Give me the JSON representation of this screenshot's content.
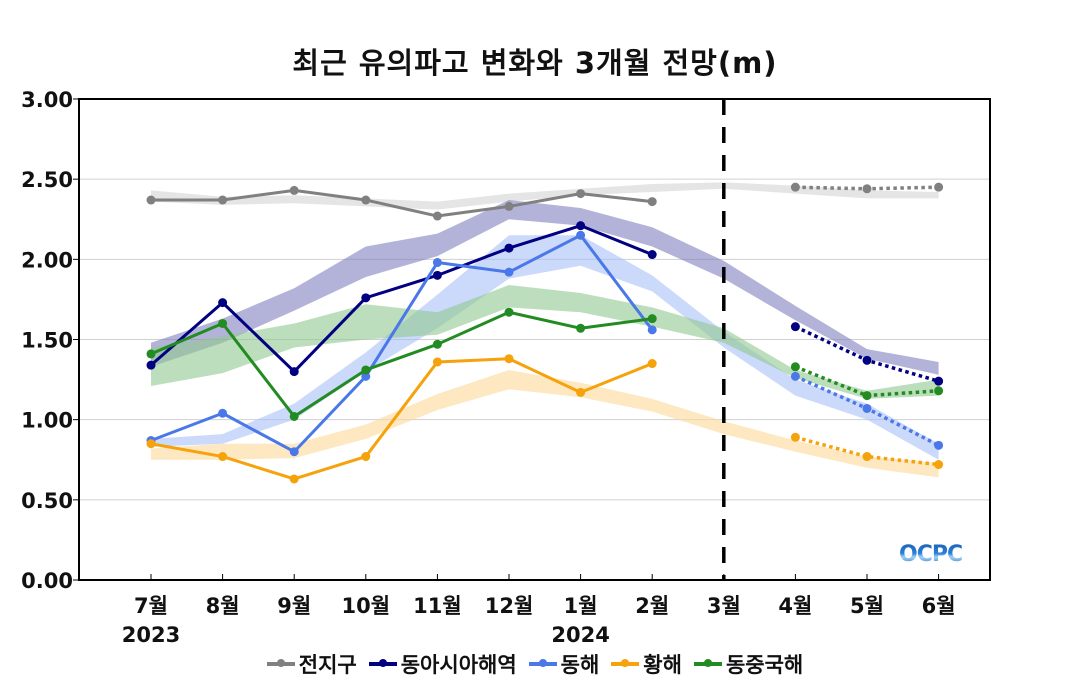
{
  "chart_data": {
    "type": "line",
    "title": "최근 유의파고 변화와 3개월 전망(m)",
    "xlabel": "",
    "ylabel": "",
    "ylim": [
      0,
      3.0
    ],
    "yticks": [
      "0.00",
      "0.50",
      "1.00",
      "1.50",
      "2.00",
      "2.50",
      "3.00"
    ],
    "ytick_values": [
      0,
      0.5,
      1.0,
      1.5,
      2.0,
      2.5,
      3.0
    ],
    "categories": [
      "7월",
      "8월",
      "9월",
      "10월",
      "11월",
      "12월",
      "1월",
      "2월",
      "3월",
      "4월",
      "5월",
      "6월"
    ],
    "year_labels": [
      {
        "label": "2023",
        "category_index": 0
      },
      {
        "label": "2024",
        "category_index": 6
      }
    ],
    "grid": "horizontal",
    "forecast_divider_category": "3월",
    "legend_position": "bottom",
    "series": [
      {
        "name": "전지구",
        "color": "#808080",
        "band_color": "#e0e0e0",
        "observed": [
          2.37,
          2.37,
          2.43,
          2.37,
          2.27,
          2.33,
          2.41,
          2.36,
          null,
          null,
          null,
          null
        ],
        "forecast": [
          null,
          null,
          null,
          null,
          null,
          null,
          null,
          null,
          null,
          2.45,
          2.44,
          2.45
        ],
        "band_low": [
          2.36,
          2.34,
          2.35,
          2.33,
          2.31,
          2.36,
          2.4,
          2.42,
          2.44,
          2.41,
          2.38,
          2.38
        ],
        "band_high": [
          2.43,
          2.39,
          2.4,
          2.38,
          2.36,
          2.41,
          2.44,
          2.47,
          2.48,
          2.46,
          2.43,
          2.42
        ]
      },
      {
        "name": "동아시아해역",
        "color": "#000080",
        "band_color": "#8080c0",
        "observed": [
          1.34,
          1.73,
          1.3,
          1.76,
          1.9,
          2.07,
          2.21,
          2.03,
          null,
          null,
          null,
          null
        ],
        "forecast": [
          null,
          null,
          null,
          null,
          null,
          null,
          null,
          null,
          null,
          1.58,
          1.37,
          1.24
        ],
        "band_low": [
          1.33,
          1.48,
          1.68,
          1.89,
          2.02,
          2.25,
          2.21,
          2.08,
          1.88,
          1.62,
          1.38,
          1.28
        ],
        "band_high": [
          1.48,
          1.63,
          1.82,
          2.08,
          2.16,
          2.37,
          2.32,
          2.2,
          1.99,
          1.71,
          1.44,
          1.36
        ]
      },
      {
        "name": "동해",
        "color": "#4a78e8",
        "band_color": "#a8c0f8",
        "observed": [
          0.87,
          1.04,
          0.8,
          1.27,
          1.98,
          1.92,
          2.15,
          1.56,
          null,
          null,
          null,
          null
        ],
        "forecast": [
          null,
          null,
          null,
          null,
          null,
          null,
          null,
          null,
          null,
          1.27,
          1.07,
          0.84
        ],
        "band_low": [
          0.83,
          0.85,
          1.0,
          1.3,
          1.57,
          1.88,
          1.96,
          1.8,
          1.45,
          1.15,
          1.0,
          0.75
        ],
        "band_high": [
          0.88,
          0.91,
          1.1,
          1.42,
          1.78,
          2.15,
          2.15,
          1.9,
          1.55,
          1.25,
          1.1,
          0.85
        ]
      },
      {
        "name": "황해",
        "color": "#f5a20c",
        "band_color": "#fcd89a",
        "observed": [
          0.85,
          0.77,
          0.63,
          0.77,
          1.36,
          1.38,
          1.17,
          1.35,
          null,
          null,
          null,
          null
        ],
        "forecast": [
          null,
          null,
          null,
          null,
          null,
          null,
          null,
          null,
          null,
          0.89,
          0.77,
          0.72
        ],
        "band_low": [
          0.75,
          0.75,
          0.76,
          0.88,
          1.06,
          1.19,
          1.14,
          1.05,
          0.91,
          0.8,
          0.7,
          0.64
        ],
        "band_high": [
          0.82,
          0.85,
          0.85,
          0.97,
          1.16,
          1.31,
          1.23,
          1.13,
          0.99,
          0.87,
          0.77,
          0.73
        ]
      },
      {
        "name": "동중국해",
        "color": "#228b22",
        "band_color": "#90c890",
        "observed": [
          1.41,
          1.6,
          1.02,
          1.31,
          1.47,
          1.67,
          1.57,
          1.63,
          null,
          null,
          null,
          null
        ],
        "forecast": [
          null,
          null,
          null,
          null,
          null,
          null,
          null,
          null,
          null,
          1.33,
          1.15,
          1.18
        ],
        "band_low": [
          1.21,
          1.29,
          1.45,
          1.5,
          1.53,
          1.7,
          1.67,
          1.58,
          1.48,
          1.26,
          1.13,
          1.15
        ],
        "band_high": [
          1.45,
          1.52,
          1.6,
          1.72,
          1.67,
          1.84,
          1.79,
          1.7,
          1.57,
          1.31,
          1.18,
          1.25
        ]
      }
    ]
  },
  "logo": {
    "text": "OCPC"
  }
}
